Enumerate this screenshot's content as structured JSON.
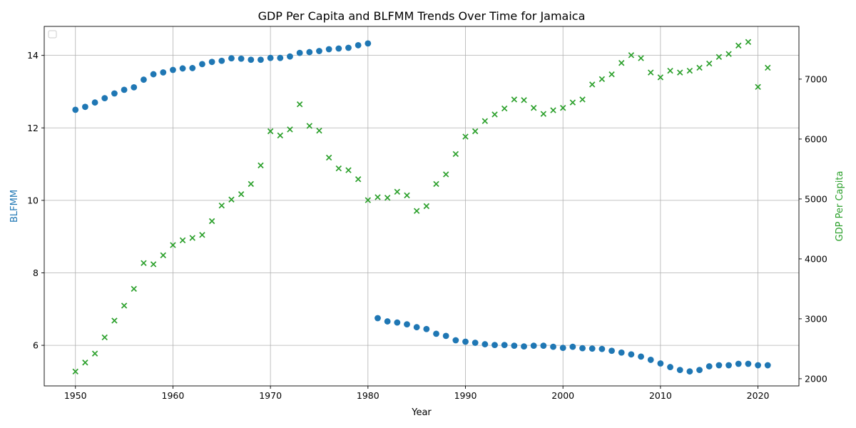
{
  "chart_data": {
    "type": "scatter",
    "title": "GDP Per Capita and BLFMM Trends Over Time for Jamaica",
    "xlabel": "Year",
    "ylabel_left": "BLFMM",
    "ylabel_right": "GDP Per Capita",
    "xlim": [
      1946.8,
      2024.2
    ],
    "ylim_left": [
      4.88,
      14.8
    ],
    "ylim_right": [
      1880,
      7880
    ],
    "x_ticks": [
      1950,
      1960,
      1970,
      1980,
      1990,
      2000,
      2010,
      2020
    ],
    "y_left_ticks": [
      6,
      8,
      10,
      12,
      14
    ],
    "y_right_ticks": [
      2000,
      3000,
      4000,
      5000,
      6000,
      7000
    ],
    "grid": true,
    "legend": "upper-left (empty)",
    "colors": {
      "blfmm": "#1f77b4",
      "gdp": "#2ca02c"
    },
    "series": [
      {
        "axis": "left",
        "marker": "circle",
        "x": [
          1950,
          1951,
          1952,
          1953,
          1954,
          1955,
          1956,
          1957,
          1958,
          1959,
          1960,
          1961,
          1962,
          1963,
          1964,
          1965,
          1966,
          1967,
          1968,
          1969,
          1970,
          1971,
          1972,
          1973,
          1974,
          1975,
          1976,
          1977,
          1978,
          1979,
          1980,
          1981,
          1982,
          1983,
          1984,
          1985,
          1986,
          1987,
          1988,
          1989,
          1990,
          1991,
          1992,
          1993,
          1994,
          1995,
          1996,
          1997,
          1998,
          1999,
          2000,
          2001,
          2002,
          2003,
          2004,
          2005,
          2006,
          2007,
          2008,
          2009,
          2010,
          2011,
          2012,
          2013,
          2014,
          2015,
          2016,
          2017,
          2018,
          2019,
          2020,
          2021
        ],
        "values": [
          12.5,
          12.58,
          12.7,
          12.82,
          12.95,
          13.05,
          13.12,
          13.33,
          13.48,
          13.53,
          13.6,
          13.64,
          13.65,
          13.76,
          13.82,
          13.85,
          13.92,
          13.91,
          13.88,
          13.88,
          13.93,
          13.93,
          13.97,
          14.07,
          14.09,
          14.12,
          14.17,
          14.19,
          14.21,
          14.28,
          14.33,
          6.75,
          6.66,
          6.63,
          6.58,
          6.5,
          6.45,
          6.32,
          6.26,
          6.14,
          6.1,
          6.07,
          6.03,
          6.01,
          6.01,
          5.99,
          5.97,
          5.99,
          5.99,
          5.96,
          5.93,
          5.96,
          5.92,
          5.91,
          5.9,
          5.85,
          5.8,
          5.75,
          5.69,
          5.6,
          5.5,
          5.4,
          5.32,
          5.28,
          5.32,
          5.42,
          5.45,
          5.45,
          5.49,
          5.49,
          5.45,
          5.45
        ]
      },
      {
        "axis": "right",
        "marker": "x",
        "x": [
          1950,
          1951,
          1952,
          1953,
          1954,
          1955,
          1956,
          1957,
          1958,
          1959,
          1960,
          1961,
          1962,
          1963,
          1964,
          1965,
          1966,
          1967,
          1968,
          1969,
          1970,
          1971,
          1972,
          1973,
          1974,
          1975,
          1976,
          1977,
          1978,
          1979,
          1980,
          1981,
          1982,
          1983,
          1984,
          1985,
          1986,
          1987,
          1988,
          1989,
          1990,
          1991,
          1992,
          1993,
          1994,
          1995,
          1996,
          1997,
          1998,
          1999,
          2000,
          2001,
          2002,
          2003,
          2004,
          2005,
          2006,
          2007,
          2008,
          2009,
          2010,
          2011,
          2012,
          2013,
          2014,
          2015,
          2016,
          2017,
          2018,
          2019,
          2020,
          2021
        ],
        "values": [
          2120,
          2270,
          2420,
          2690,
          2970,
          3220,
          3500,
          3930,
          3910,
          4060,
          4230,
          4310,
          4350,
          4400,
          4630,
          4890,
          4990,
          5080,
          5250,
          5560,
          6130,
          6060,
          6160,
          6580,
          6220,
          6140,
          5690,
          5510,
          5480,
          5330,
          4980,
          5030,
          5020,
          5120,
          5060,
          4800,
          4880,
          5250,
          5410,
          5750,
          6040,
          6130,
          6300,
          6410,
          6510,
          6660,
          6650,
          6520,
          6420,
          6480,
          6520,
          6610,
          6660,
          6910,
          7000,
          7080,
          7270,
          7400,
          7350,
          7110,
          7030,
          7140,
          7110,
          7140,
          7190,
          7260,
          7370,
          7420,
          7560,
          7620,
          6870,
          7190
        ]
      }
    ]
  }
}
